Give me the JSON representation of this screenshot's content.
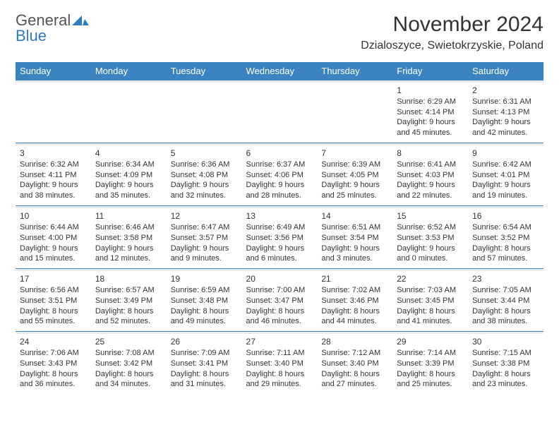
{
  "brand": {
    "word1": "General",
    "word2": "Blue",
    "text_color": "#555555",
    "accent_color": "#2f7bbf"
  },
  "header": {
    "title": "November 2024",
    "location": "Dzialoszyce, Swietokrzyskie, Poland"
  },
  "calendar": {
    "day_headers": [
      "Sunday",
      "Monday",
      "Tuesday",
      "Wednesday",
      "Thursday",
      "Friday",
      "Saturday"
    ],
    "header_bg": "#3b83c1",
    "header_fg": "#ffffff",
    "sep_bg": "#e9edf1",
    "sep_border": "#3b83c1",
    "weeks": [
      [
        null,
        null,
        null,
        null,
        null,
        {
          "n": "1",
          "sr": "Sunrise: 6:29 AM",
          "ss": "Sunset: 4:14 PM",
          "d1": "Daylight: 9 hours",
          "d2": "and 45 minutes."
        },
        {
          "n": "2",
          "sr": "Sunrise: 6:31 AM",
          "ss": "Sunset: 4:13 PM",
          "d1": "Daylight: 9 hours",
          "d2": "and 42 minutes."
        }
      ],
      [
        {
          "n": "3",
          "sr": "Sunrise: 6:32 AM",
          "ss": "Sunset: 4:11 PM",
          "d1": "Daylight: 9 hours",
          "d2": "and 38 minutes."
        },
        {
          "n": "4",
          "sr": "Sunrise: 6:34 AM",
          "ss": "Sunset: 4:09 PM",
          "d1": "Daylight: 9 hours",
          "d2": "and 35 minutes."
        },
        {
          "n": "5",
          "sr": "Sunrise: 6:36 AM",
          "ss": "Sunset: 4:08 PM",
          "d1": "Daylight: 9 hours",
          "d2": "and 32 minutes."
        },
        {
          "n": "6",
          "sr": "Sunrise: 6:37 AM",
          "ss": "Sunset: 4:06 PM",
          "d1": "Daylight: 9 hours",
          "d2": "and 28 minutes."
        },
        {
          "n": "7",
          "sr": "Sunrise: 6:39 AM",
          "ss": "Sunset: 4:05 PM",
          "d1": "Daylight: 9 hours",
          "d2": "and 25 minutes."
        },
        {
          "n": "8",
          "sr": "Sunrise: 6:41 AM",
          "ss": "Sunset: 4:03 PM",
          "d1": "Daylight: 9 hours",
          "d2": "and 22 minutes."
        },
        {
          "n": "9",
          "sr": "Sunrise: 6:42 AM",
          "ss": "Sunset: 4:01 PM",
          "d1": "Daylight: 9 hours",
          "d2": "and 19 minutes."
        }
      ],
      [
        {
          "n": "10",
          "sr": "Sunrise: 6:44 AM",
          "ss": "Sunset: 4:00 PM",
          "d1": "Daylight: 9 hours",
          "d2": "and 15 minutes."
        },
        {
          "n": "11",
          "sr": "Sunrise: 6:46 AM",
          "ss": "Sunset: 3:58 PM",
          "d1": "Daylight: 9 hours",
          "d2": "and 12 minutes."
        },
        {
          "n": "12",
          "sr": "Sunrise: 6:47 AM",
          "ss": "Sunset: 3:57 PM",
          "d1": "Daylight: 9 hours",
          "d2": "and 9 minutes."
        },
        {
          "n": "13",
          "sr": "Sunrise: 6:49 AM",
          "ss": "Sunset: 3:56 PM",
          "d1": "Daylight: 9 hours",
          "d2": "and 6 minutes."
        },
        {
          "n": "14",
          "sr": "Sunrise: 6:51 AM",
          "ss": "Sunset: 3:54 PM",
          "d1": "Daylight: 9 hours",
          "d2": "and 3 minutes."
        },
        {
          "n": "15",
          "sr": "Sunrise: 6:52 AM",
          "ss": "Sunset: 3:53 PM",
          "d1": "Daylight: 9 hours",
          "d2": "and 0 minutes."
        },
        {
          "n": "16",
          "sr": "Sunrise: 6:54 AM",
          "ss": "Sunset: 3:52 PM",
          "d1": "Daylight: 8 hours",
          "d2": "and 57 minutes."
        }
      ],
      [
        {
          "n": "17",
          "sr": "Sunrise: 6:56 AM",
          "ss": "Sunset: 3:51 PM",
          "d1": "Daylight: 8 hours",
          "d2": "and 55 minutes."
        },
        {
          "n": "18",
          "sr": "Sunrise: 6:57 AM",
          "ss": "Sunset: 3:49 PM",
          "d1": "Daylight: 8 hours",
          "d2": "and 52 minutes."
        },
        {
          "n": "19",
          "sr": "Sunrise: 6:59 AM",
          "ss": "Sunset: 3:48 PM",
          "d1": "Daylight: 8 hours",
          "d2": "and 49 minutes."
        },
        {
          "n": "20",
          "sr": "Sunrise: 7:00 AM",
          "ss": "Sunset: 3:47 PM",
          "d1": "Daylight: 8 hours",
          "d2": "and 46 minutes."
        },
        {
          "n": "21",
          "sr": "Sunrise: 7:02 AM",
          "ss": "Sunset: 3:46 PM",
          "d1": "Daylight: 8 hours",
          "d2": "and 44 minutes."
        },
        {
          "n": "22",
          "sr": "Sunrise: 7:03 AM",
          "ss": "Sunset: 3:45 PM",
          "d1": "Daylight: 8 hours",
          "d2": "and 41 minutes."
        },
        {
          "n": "23",
          "sr": "Sunrise: 7:05 AM",
          "ss": "Sunset: 3:44 PM",
          "d1": "Daylight: 8 hours",
          "d2": "and 38 minutes."
        }
      ],
      [
        {
          "n": "24",
          "sr": "Sunrise: 7:06 AM",
          "ss": "Sunset: 3:43 PM",
          "d1": "Daylight: 8 hours",
          "d2": "and 36 minutes."
        },
        {
          "n": "25",
          "sr": "Sunrise: 7:08 AM",
          "ss": "Sunset: 3:42 PM",
          "d1": "Daylight: 8 hours",
          "d2": "and 34 minutes."
        },
        {
          "n": "26",
          "sr": "Sunrise: 7:09 AM",
          "ss": "Sunset: 3:41 PM",
          "d1": "Daylight: 8 hours",
          "d2": "and 31 minutes."
        },
        {
          "n": "27",
          "sr": "Sunrise: 7:11 AM",
          "ss": "Sunset: 3:40 PM",
          "d1": "Daylight: 8 hours",
          "d2": "and 29 minutes."
        },
        {
          "n": "28",
          "sr": "Sunrise: 7:12 AM",
          "ss": "Sunset: 3:40 PM",
          "d1": "Daylight: 8 hours",
          "d2": "and 27 minutes."
        },
        {
          "n": "29",
          "sr": "Sunrise: 7:14 AM",
          "ss": "Sunset: 3:39 PM",
          "d1": "Daylight: 8 hours",
          "d2": "and 25 minutes."
        },
        {
          "n": "30",
          "sr": "Sunrise: 7:15 AM",
          "ss": "Sunset: 3:38 PM",
          "d1": "Daylight: 8 hours",
          "d2": "and 23 minutes."
        }
      ]
    ]
  }
}
